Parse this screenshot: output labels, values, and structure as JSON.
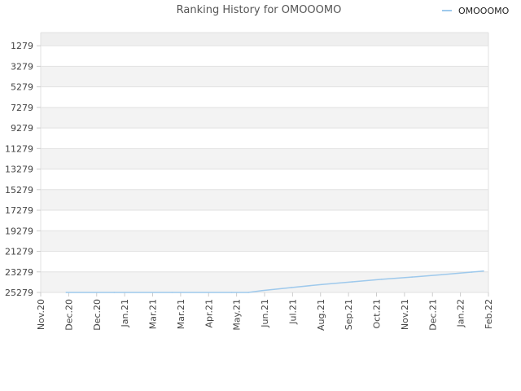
{
  "chart_data": {
    "type": "line",
    "title": "Ranking History for OMOOOMO",
    "xlabel": "",
    "ylabel": "",
    "y_inverted": true,
    "ylim": [
      25279,
      0
    ],
    "yticks": [
      1279,
      3279,
      5279,
      7279,
      9279,
      11279,
      13279,
      15279,
      17279,
      19279,
      21279,
      23279,
      25279
    ],
    "xticks": [
      "Nov.20",
      "Dec.20",
      "Dec.20",
      "Jan.21",
      "Mar.21",
      "Mar.21",
      "Apr.21",
      "May.21",
      "Jun.21",
      "Jul.21",
      "Aug.21",
      "Sep.21",
      "Oct.21",
      "Nov.21",
      "Dec.21",
      "Jan.22",
      "Feb.22"
    ],
    "x_range": [
      "2020-11-01",
      "2022-02-01"
    ],
    "grid": true,
    "legend_position": "top-right",
    "series": [
      {
        "name": "OMOOOMO",
        "color": "#9ec9ec",
        "points": [
          {
            "x": "2020-11-27",
            "y": 25279
          },
          {
            "x": "2021-01-15",
            "y": 25279
          },
          {
            "x": "2021-03-15",
            "y": 25279
          },
          {
            "x": "2021-05-15",
            "y": 25279
          },
          {
            "x": "2021-06-01",
            "y": 25279
          },
          {
            "x": "2021-06-15",
            "y": 25100
          },
          {
            "x": "2021-07-15",
            "y": 24800
          },
          {
            "x": "2021-08-15",
            "y": 24500
          },
          {
            "x": "2021-09-15",
            "y": 24250
          },
          {
            "x": "2021-10-15",
            "y": 24000
          },
          {
            "x": "2021-11-15",
            "y": 23780
          },
          {
            "x": "2021-12-15",
            "y": 23550
          },
          {
            "x": "2022-01-15",
            "y": 23300
          },
          {
            "x": "2022-01-27",
            "y": 23200
          }
        ]
      }
    ]
  }
}
